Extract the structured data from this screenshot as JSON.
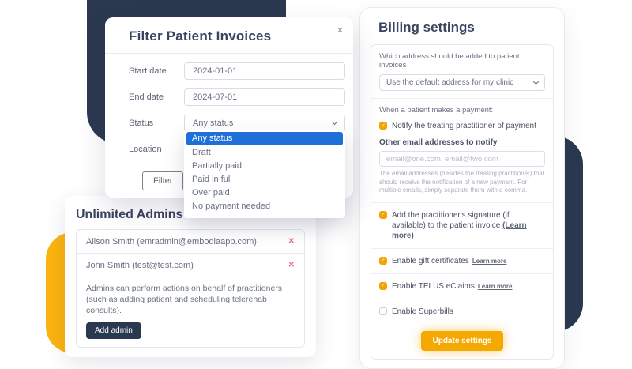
{
  "colors": {
    "navy": "#2a3950",
    "yellow": "#fbb40f",
    "accent_blue": "#1e6fd9",
    "danger_red": "#e4737f",
    "button_yellow": "#f5a800"
  },
  "icons": {
    "close": "×",
    "remove": "✕",
    "check": "✓"
  },
  "filter_modal": {
    "title": "Filter Patient Invoices",
    "start_date": {
      "label": "Start date",
      "value": "2024-01-01"
    },
    "end_date": {
      "label": "End date",
      "value": "2024-07-01"
    },
    "status": {
      "label": "Status",
      "value": "Any status"
    },
    "location": {
      "label": "Location",
      "value": ""
    },
    "status_dropdown": {
      "selected": "Any status",
      "options": [
        "Any status",
        "Draft",
        "Partially paid",
        "Paid in full",
        "Over paid",
        "No payment needed"
      ]
    },
    "filter_button": "Filter"
  },
  "admins_card": {
    "title": "Unlimited Admins",
    "admins": [
      "Alison Smith (emradmin@embodiaapp.com)",
      "John Smith (test@test.com)"
    ],
    "description": "Admins can perform actions on behalf of practitioners (such as adding patient and scheduling telerehab consults).",
    "add_button": "Add admin"
  },
  "billing_card": {
    "title": "Billing settings",
    "address": {
      "label": "Which address should be added to patient invoices",
      "selected": "Use the default address for my clinic"
    },
    "payment": {
      "label": "When a patient makes a payment:",
      "notify": {
        "label": "Notify the treating practitioner of payment",
        "checked": true
      },
      "other_emails": {
        "label": "Other email addresses to notify",
        "placeholder": "email@one.com, email@two.com",
        "help": "The email addresses (besides the treating practitioner) that should receive the notification of a new payment. For multiple emails, simply separate them with a comma."
      }
    },
    "signature": {
      "label": "Add the practitioner's signature (if available) to the patient invoice ",
      "link": "(Learn more)",
      "checked": true
    },
    "toggles": [
      {
        "label": "Enable gift certificates",
        "link": "Learn more",
        "checked": true
      },
      {
        "label": "Enable TELUS eClaims",
        "link": "Learn more",
        "checked": true
      },
      {
        "label": "Enable Superbills",
        "link": "",
        "checked": false
      }
    ],
    "update_button": "Update settings"
  }
}
